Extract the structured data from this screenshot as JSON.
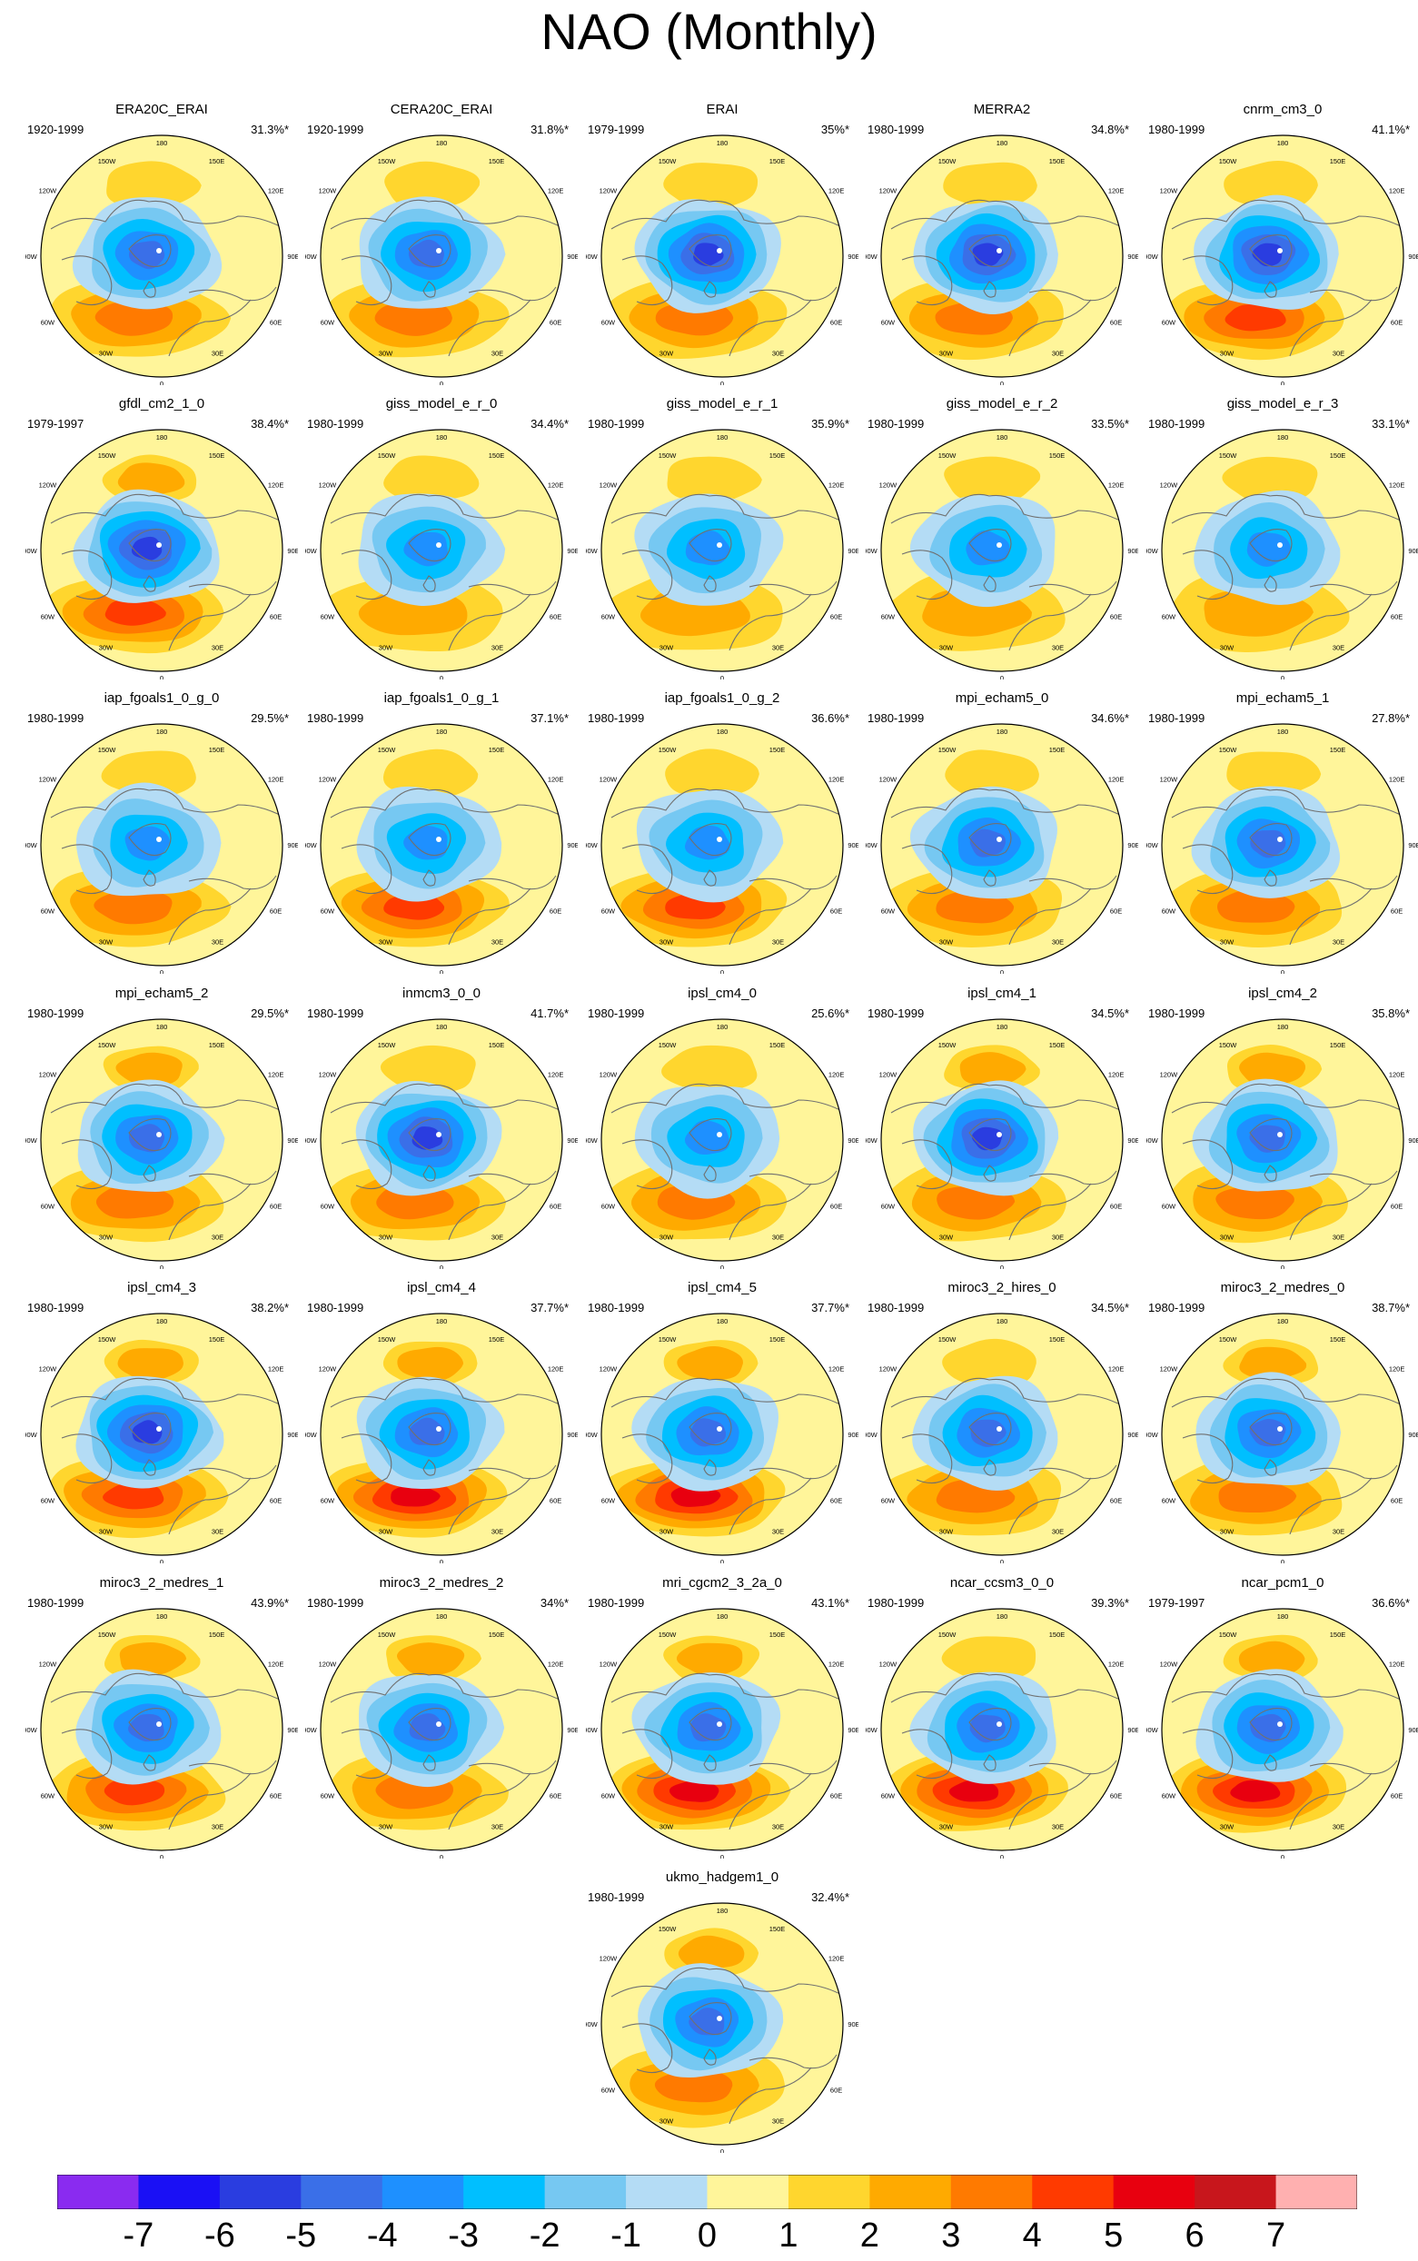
{
  "title": "NAO (Monthly)",
  "map_labels": {
    "lon_top": "180",
    "lon_bottom": "0",
    "ne": "150E",
    "nw": "150W",
    "e1": "120E",
    "w1": "120W",
    "e2": "90E",
    "w2": "90W",
    "e3": "60E",
    "w3": "60W",
    "se": "30E",
    "sw": "30W"
  },
  "panels": [
    {
      "name": "ERA20C_ERAI",
      "years": "1920-1999",
      "pct": "31.3%*",
      "neg": 4.4,
      "pos": 3.3,
      "alpha": 0.35
    },
    {
      "name": "CERA20C_ERAI",
      "years": "1920-1999",
      "pct": "31.8%*",
      "neg": 4.3,
      "pos": 3.2,
      "alpha": 0.3
    },
    {
      "name": "ERAI",
      "years": "1979-1999",
      "pct": "35%*",
      "neg": 5.2,
      "pos": 3.4,
      "alpha": 0.35
    },
    {
      "name": "MERRA2",
      "years": "1980-1999",
      "pct": "34.8%*",
      "neg": 5.4,
      "pos": 3.5,
      "alpha": 0.3
    },
    {
      "name": "cnrm_cm3_0",
      "years": "1980-1999",
      "pct": "41.1%*",
      "neg": 5.0,
      "pos": 4.7,
      "alpha": 0.2
    },
    {
      "name": "gfdl_cm2_1_0",
      "years": "1979-1997",
      "pct": "38.4%*",
      "neg": 5.2,
      "pos": 4.0,
      "alpha": 0.55
    },
    {
      "name": "giss_model_e_r_0",
      "years": "1980-1999",
      "pct": "34.4%*",
      "neg": 3.8,
      "pos": 2.7,
      "alpha": 0.2
    },
    {
      "name": "giss_model_e_r_1",
      "years": "1980-1999",
      "pct": "35.9%*",
      "neg": 3.7,
      "pos": 2.6,
      "alpha": 0.1
    },
    {
      "name": "giss_model_e_r_2",
      "years": "1980-1999",
      "pct": "33.5%*",
      "neg": 3.7,
      "pos": 2.7,
      "alpha": 0.1
    },
    {
      "name": "giss_model_e_r_3",
      "years": "1980-1999",
      "pct": "33.1%*",
      "neg": 3.5,
      "pos": 2.5,
      "alpha": 0.3
    },
    {
      "name": "iap_fgoals1_0_g_0",
      "years": "1980-1999",
      "pct": "29.5%*",
      "neg": 3.6,
      "pos": 3.8,
      "alpha": 0.1
    },
    {
      "name": "iap_fgoals1_0_g_1",
      "years": "1980-1999",
      "pct": "37.1%*",
      "neg": 3.7,
      "pos": 4.4,
      "alpha": 0.3
    },
    {
      "name": "iap_fgoals1_0_g_2",
      "years": "1980-1999",
      "pct": "36.6%*",
      "neg": 3.7,
      "pos": 4.4,
      "alpha": 0.2
    },
    {
      "name": "mpi_echam5_0",
      "years": "1980-1999",
      "pct": "34.6%*",
      "neg": 4.4,
      "pos": 3.8,
      "alpha": 0.35
    },
    {
      "name": "mpi_echam5_1",
      "years": "1980-1999",
      "pct": "27.8%*",
      "neg": 4.0,
      "pos": 3.5,
      "alpha": 0.2
    },
    {
      "name": "mpi_echam5_2",
      "years": "1980-1999",
      "pct": "29.5%*",
      "neg": 4.4,
      "pos": 3.9,
      "alpha": 0.45
    },
    {
      "name": "inmcm3_0_0",
      "years": "1980-1999",
      "pct": "41.7%*",
      "neg": 5.6,
      "pos": 3.8,
      "alpha": 0.25
    },
    {
      "name": "ipsl_cm4_0",
      "years": "1980-1999",
      "pct": "25.6%*",
      "neg": 3.4,
      "pos": 3.0,
      "alpha": 0.3
    },
    {
      "name": "ipsl_cm4_1",
      "years": "1980-1999",
      "pct": "34.5%*",
      "neg": 5.2,
      "pos": 3.7,
      "alpha": 0.6
    },
    {
      "name": "ipsl_cm4_2",
      "years": "1980-1999",
      "pct": "35.8%*",
      "neg": 4.9,
      "pos": 3.7,
      "alpha": 0.45
    },
    {
      "name": "ipsl_cm4_3",
      "years": "1980-1999",
      "pct": "38.2%*",
      "neg": 5.6,
      "pos": 4.6,
      "alpha": 0.55
    },
    {
      "name": "ipsl_cm4_4",
      "years": "1980-1999",
      "pct": "37.7%*",
      "neg": 4.4,
      "pos": 5.3,
      "alpha": 0.5
    },
    {
      "name": "ipsl_cm4_5",
      "years": "1980-1999",
      "pct": "37.7%*",
      "neg": 4.5,
      "pos": 5.4,
      "alpha": 0.55
    },
    {
      "name": "miroc3_2_hires_0",
      "years": "1980-1999",
      "pct": "34.5%*",
      "neg": 4.1,
      "pos": 3.4,
      "alpha": 0.3
    },
    {
      "name": "miroc3_2_medres_0",
      "years": "1980-1999",
      "pct": "38.7%*",
      "neg": 4.4,
      "pos": 3.6,
      "alpha": 0.45
    },
    {
      "name": "miroc3_2_medres_1",
      "years": "1980-1999",
      "pct": "43.9%*",
      "neg": 4.5,
      "pos": 4.3,
      "alpha": 0.5
    },
    {
      "name": "miroc3_2_medres_2",
      "years": "1980-1999",
      "pct": "34%*",
      "neg": 4.0,
      "pos": 3.5,
      "alpha": 0.4
    },
    {
      "name": "mri_cgcm2_3_2a_0",
      "years": "1980-1999",
      "pct": "43.1%*",
      "neg": 4.5,
      "pos": 5.2,
      "alpha": 0.6
    },
    {
      "name": "ncar_ccsm3_0_0",
      "years": "1980-1999",
      "pct": "39.3%*",
      "neg": 4.6,
      "pos": 5.5,
      "alpha": 0.35
    },
    {
      "name": "ncar_pcm1_0",
      "years": "1979-1997",
      "pct": "36.6%*",
      "neg": 4.6,
      "pos": 5.0,
      "alpha": 0.4
    },
    {
      "name": "ukmo_hadgem1_0",
      "years": "1980-1999",
      "pct": "32.4%*",
      "neg": 4.4,
      "pos": 3.6,
      "alpha": 0.45
    }
  ],
  "colorbar": {
    "labels": [
      "-7",
      "-6",
      "-5",
      "-4",
      "-3",
      "-2",
      "-1",
      "0",
      "1",
      "2",
      "3",
      "4",
      "5",
      "6",
      "7"
    ],
    "colors": [
      "#8a2bf0",
      "#1a10f5",
      "#2a3de0",
      "#3a6fe8",
      "#1e90ff",
      "#00bfff",
      "#76c8f2",
      "#b4dcf5",
      "#fff59a",
      "#ffd62e",
      "#ffaa00",
      "#ff7a00",
      "#ff3a00",
      "#e8000f",
      "#c8161c",
      "#ffb0b0"
    ]
  },
  "fill_colors": {
    "neg": [
      "#b4dcf5",
      "#76c8f2",
      "#00bfff",
      "#1e90ff",
      "#3a6fe8",
      "#2a3de0",
      "#1a10f5",
      "#8a2bf0"
    ],
    "pos": [
      "#fff59a",
      "#ffd62e",
      "#ffaa00",
      "#ff7a00",
      "#ff3a00",
      "#e8000f",
      "#c8161c",
      "#ffb0b0"
    ],
    "land": "#707070",
    "frame": "#000000"
  }
}
